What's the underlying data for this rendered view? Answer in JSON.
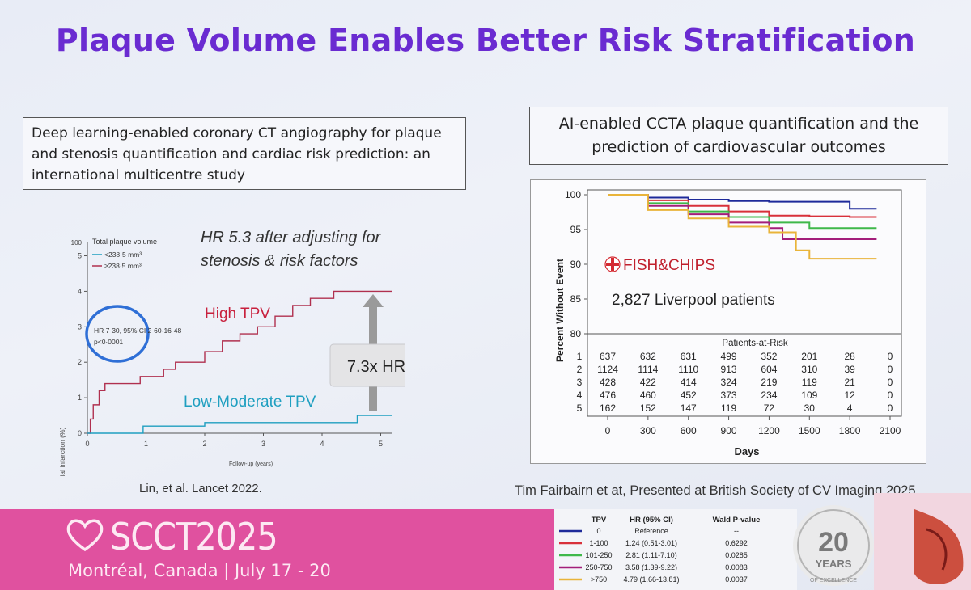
{
  "title": "Plaque Volume Enables Better Risk Stratification",
  "left_box": {
    "lines": [
      "Deep learning-enabled coronary CT angiography for plaque",
      "and stenosis quantification and cardiac risk prediction: an",
      "international multicentre study"
    ]
  },
  "right_box": {
    "lines": [
      "AI-enabled CCTA plaque quantification and the",
      "prediction of cardiovascular outcomes"
    ]
  },
  "hr_note": {
    "line1": "HR 5.3 after adjusting for",
    "line2": "stenosis & risk factors"
  },
  "left_chart": {
    "ylabel": "Cumulative incidenc of myocardial infarction (%)",
    "xlabel": "Follow-up (years)",
    "legend_title": "Total plaque volume",
    "legend_low": "<238·5 mm³",
    "legend_high": "≥238·5 mm³",
    "stat_line1": "HR 7·30, 95% CI 2·60-16·48",
    "stat_line2": "p<0·0001",
    "high_label": "High TPV",
    "low_label": "Low-Moderate TPV",
    "arrow_label": "7.3x HR",
    "colors": {
      "high": "#b0304f",
      "low": "#1f9fc0",
      "circle": "#2f6fd6"
    }
  },
  "chart_data": [
    {
      "type": "line",
      "title": "Total plaque volume",
      "xlabel": "Follow-up (years)",
      "ylabel": "Cumulative incidenc of myocardial infarction (%)",
      "xlim": [
        0,
        5.2
      ],
      "ylim": [
        0,
        5
      ],
      "x_ticks": [
        "0",
        "1",
        "2",
        "3",
        "4",
        "5"
      ],
      "y_ticks": [
        "0",
        "1",
        "2",
        "3",
        "4",
        "5"
      ],
      "y_top_label": "100",
      "series": [
        {
          "name": "≥238·5 mm³",
          "color": "#b0304f",
          "points": [
            [
              0,
              0
            ],
            [
              0.05,
              0.4
            ],
            [
              0.1,
              0.8
            ],
            [
              0.2,
              1.2
            ],
            [
              0.3,
              1.4
            ],
            [
              0.8,
              1.4
            ],
            [
              0.9,
              1.6
            ],
            [
              1.3,
              1.8
            ],
            [
              1.5,
              2.0
            ],
            [
              2.0,
              2.3
            ],
            [
              2.3,
              2.6
            ],
            [
              2.6,
              2.8
            ],
            [
              2.9,
              3.0
            ],
            [
              3.2,
              3.3
            ],
            [
              3.5,
              3.6
            ],
            [
              3.8,
              3.8
            ],
            [
              4.2,
              4.0
            ],
            [
              4.7,
              4.0
            ],
            [
              5.2,
              4.0
            ]
          ]
        },
        {
          "name": "<238·5 mm³",
          "color": "#1f9fc0",
          "points": [
            [
              0,
              0
            ],
            [
              0.9,
              0
            ],
            [
              0.95,
              0.2
            ],
            [
              1.9,
              0.2
            ],
            [
              2.0,
              0.3
            ],
            [
              4.5,
              0.3
            ],
            [
              4.6,
              0.5
            ],
            [
              5.2,
              0.5
            ]
          ]
        }
      ],
      "annotations": [
        "HR 7·30, 95% CI 2·60-16·48",
        "p<0·0001",
        "High TPV",
        "Low-Moderate TPV",
        "7.3x HR"
      ]
    },
    {
      "type": "line",
      "title": "",
      "xlabel": "Days",
      "ylabel": "Percent Without Event",
      "xlim": [
        0,
        2100
      ],
      "ylim": [
        80,
        100
      ],
      "x_ticks": [
        "0",
        "300",
        "600",
        "900",
        "1200",
        "1500",
        "1800",
        "2100"
      ],
      "y_ticks": [
        "80",
        "85",
        "90",
        "95",
        "100"
      ],
      "series": [
        {
          "name": "0",
          "color": "#1e2a9a",
          "points": [
            [
              0,
              100
            ],
            [
              300,
              99.6
            ],
            [
              600,
              99.3
            ],
            [
              900,
              99.1
            ],
            [
              1200,
              99.0
            ],
            [
              1800,
              99.0
            ],
            [
              1800,
              98.0
            ],
            [
              2000,
              98.0
            ]
          ]
        },
        {
          "name": "1-100",
          "color": "#d8303a",
          "points": [
            [
              0,
              100
            ],
            [
              300,
              99.2
            ],
            [
              600,
              98.4
            ],
            [
              900,
              97.6
            ],
            [
              1200,
              97.0
            ],
            [
              1500,
              96.9
            ],
            [
              1800,
              96.8
            ],
            [
              2000,
              96.8
            ]
          ]
        },
        {
          "name": "101-250",
          "color": "#3fb84a",
          "points": [
            [
              0,
              100
            ],
            [
              300,
              98.8
            ],
            [
              600,
              97.6
            ],
            [
              900,
              96.8
            ],
            [
              1200,
              96.0
            ],
            [
              1500,
              95.2
            ],
            [
              2000,
              95.2
            ]
          ]
        },
        {
          "name": "250-750",
          "color": "#a31e7a",
          "points": [
            [
              0,
              100
            ],
            [
              300,
              98.4
            ],
            [
              600,
              97.2
            ],
            [
              900,
              96.0
            ],
            [
              1200,
              95.2
            ],
            [
              1300,
              93.6
            ],
            [
              2000,
              93.6
            ]
          ]
        },
        {
          "name": ">750",
          "color": "#e9b43a",
          "points": [
            [
              0,
              100
            ],
            [
              300,
              97.8
            ],
            [
              600,
              96.6
            ],
            [
              900,
              95.4
            ],
            [
              1200,
              94.6
            ],
            [
              1400,
              92.0
            ],
            [
              1500,
              90.8
            ],
            [
              2000,
              90.8
            ]
          ]
        }
      ],
      "overlay": {
        "logo": "FISH&CHIPS",
        "note": "2,827 Liverpool patients"
      },
      "risk_table": {
        "header": "Patients-at-Risk",
        "rows": [
          {
            "id": "1",
            "values": [
              "637",
              "632",
              "631",
              "499",
              "352",
              "201",
              "28",
              "0"
            ]
          },
          {
            "id": "2",
            "values": [
              "1124",
              "1114",
              "1110",
              "913",
              "604",
              "310",
              "39",
              "0"
            ]
          },
          {
            "id": "3",
            "values": [
              "428",
              "422",
              "414",
              "324",
              "219",
              "119",
              "21",
              "0"
            ]
          },
          {
            "id": "4",
            "values": [
              "476",
              "460",
              "452",
              "373",
              "234",
              "109",
              "12",
              "0"
            ]
          },
          {
            "id": "5",
            "values": [
              "162",
              "152",
              "147",
              "119",
              "72",
              "30",
              "4",
              "0"
            ]
          }
        ]
      }
    }
  ],
  "citations": {
    "left": "Lin, et al. Lancet 2022.",
    "right": "Tim Fairbairn et at, Presented at British Society of CV Imaging 2025"
  },
  "hr_table": {
    "headers": [
      "TPV",
      "HR (95% CI)",
      "Wald P-value"
    ],
    "rows": [
      {
        "tpv": "0",
        "hr": "Reference",
        "p": "--",
        "color": "#1e2a9a"
      },
      {
        "tpv": "1-100",
        "hr": "1.24 (0.51-3.01)",
        "p": "0.6292",
        "color": "#d8303a"
      },
      {
        "tpv": "101-250",
        "hr": "2.81 (1.11-7.10)",
        "p": "0.0285",
        "color": "#3fb84a"
      },
      {
        "tpv": "250-750",
        "hr": "3.58 (1.39-9.22)",
        "p": "0.0083",
        "color": "#a31e7a"
      },
      {
        "tpv": ">750",
        "hr": "4.79 (1.66-13.81)",
        "p": "0.0037",
        "color": "#e9b43a"
      }
    ]
  },
  "footer": {
    "brand": "SCCT2025",
    "location": "Montréal, Canada | July 17 - 20"
  },
  "badge": {
    "number": "20",
    "word": "YEARS",
    "ring": "OF EXCELLENCE"
  }
}
